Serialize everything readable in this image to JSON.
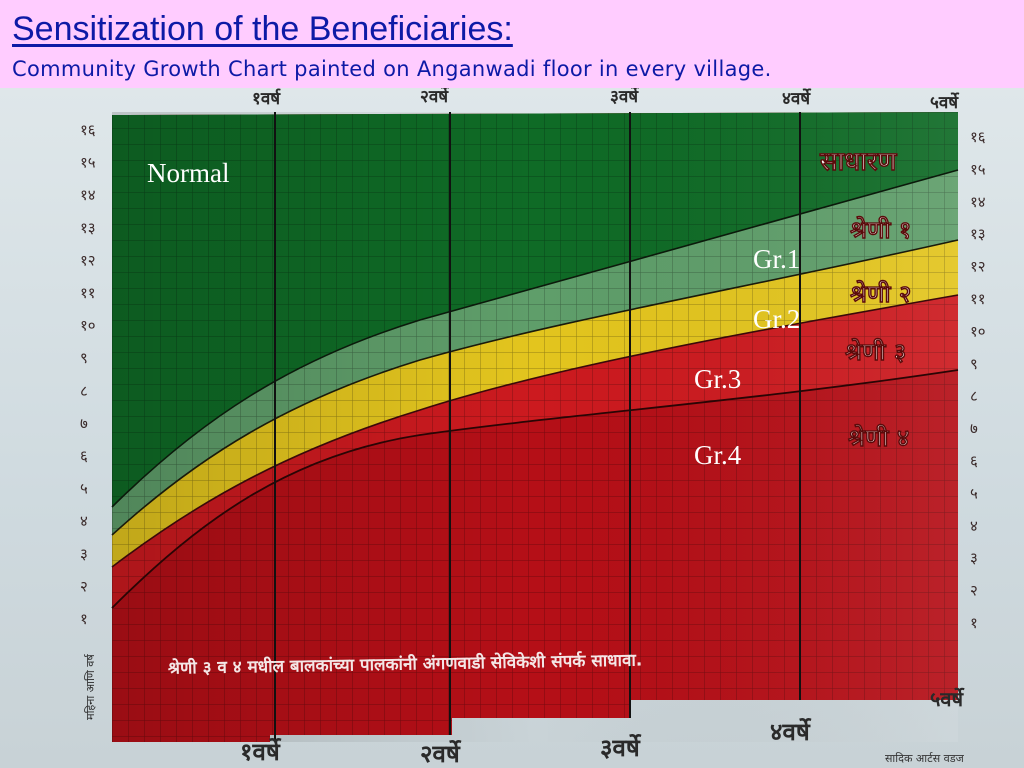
{
  "slide": {
    "title": "Sensitization of the Beneficiaries:",
    "subtitle": "Community Growth Chart painted on Anganwadi floor in every village."
  },
  "overlay_labels": {
    "normal": "Normal",
    "gr1": "Gr.1",
    "gr2": "Gr.2",
    "gr3": "Gr.3",
    "gr4": "Gr.4"
  },
  "painted_chart": {
    "top_age_labels": [
      "१वर्ष",
      "२वर्षे",
      "३वर्षे",
      "४वर्षे",
      "५वर्षे"
    ],
    "bottom_age_labels": [
      "१वर्षे",
      "२वर्षे",
      "३वर्षे",
      "४वर्षे",
      "५वर्षे"
    ],
    "weight_ticks": [
      "१६",
      "१५",
      "१४",
      "१३",
      "१२",
      "११",
      "१०",
      "९",
      "८",
      "७",
      "६",
      "५",
      "४",
      "३",
      "२",
      "१"
    ],
    "zone_labels": {
      "normal": "साधारण",
      "grade1": "श्रेणी १",
      "grade2": "श्रेणी २",
      "grade3": "श्रेणी ३",
      "grade4": "श्रेणी ४"
    },
    "message": "श्रेणी ३ व ४ मधील बालकांच्या पालकांनी अंगणवाडी सेविकेशी संपर्क साधावा.",
    "side_label": "महिना आणि वर्ष",
    "artist_credit": "सादिक आर्टस वडज",
    "colors": {
      "normal": "#0f6b26",
      "grade1": "#5f9e6a",
      "grade2": "#e3c51e",
      "grade3": "#c8141a",
      "grade4": "#b50f17"
    }
  }
}
